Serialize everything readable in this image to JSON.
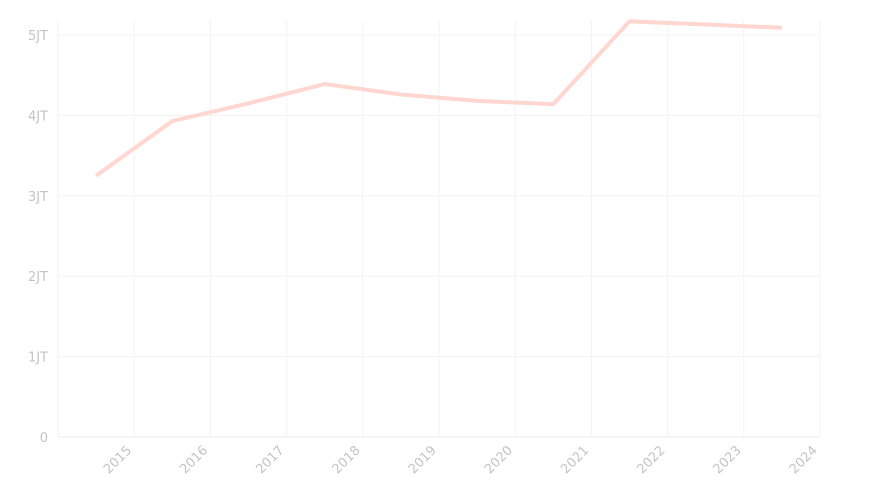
{
  "chart_data": {
    "type": "line",
    "title": "",
    "xlabel": "",
    "ylabel": "",
    "categories": [
      "2015",
      "2016",
      "2017",
      "2018",
      "2019",
      "2020",
      "2021",
      "2022",
      "2023",
      "2024"
    ],
    "series": [
      {
        "values": [
          3250000,
          3930000,
          4150000,
          4390000,
          4260000,
          4180000,
          4140000,
          5170000,
          5130000,
          5090000
        ],
        "color": "#ffd6d0"
      }
    ],
    "ylim": [
      0,
      5000000
    ],
    "yticks": [
      0,
      1000000,
      2000000,
      3000000,
      4000000,
      5000000
    ],
    "ytick_labels": [
      "0",
      "1JT",
      "2JT",
      "3JT",
      "4JT",
      "5JT"
    ],
    "grid": true,
    "legend": "none"
  }
}
